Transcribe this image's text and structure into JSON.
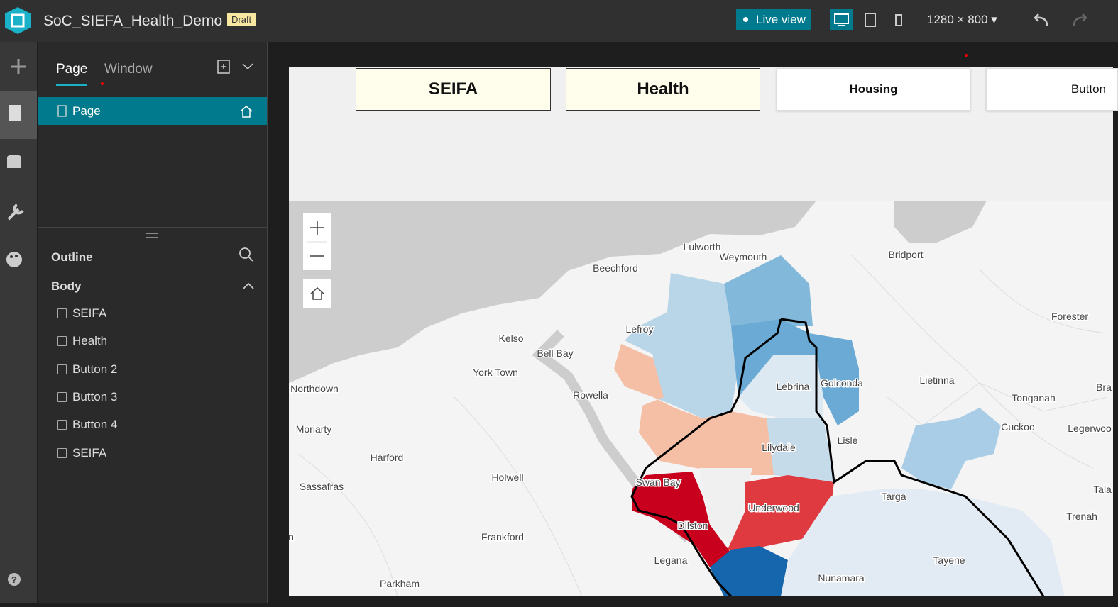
{
  "header": {
    "app_title": "SoC_SIEFA_Health_Demo",
    "badge": "Draft",
    "live_view": "Live view",
    "resolution": "1280 × 800"
  },
  "panel": {
    "tabs": [
      "Page",
      "Window"
    ],
    "page_item": "Page",
    "outline_title": "Outline",
    "body_label": "Body",
    "outline_items": [
      "SEIFA",
      "Health",
      "Button 2",
      "Button 3",
      "Button 4",
      "SEIFA"
    ]
  },
  "canvas": {
    "buttons": [
      "SEIFA",
      "Health",
      "Housing",
      "Button"
    ]
  },
  "map": {
    "labels": [
      "Lulworth",
      "Weymouth",
      "Beechford",
      "Bridport",
      "Forester",
      "Lefroy",
      "Kelso",
      "Bell Bay",
      "York Town",
      "Northdown",
      "Rowella",
      "Lebrina",
      "Golconda",
      "Lietinna",
      "Tonganah",
      "Bra",
      "Cuckoo",
      "Legerwoo",
      "Moriarty",
      "Lilydale",
      "Lisle",
      "Harford",
      "Holwell",
      "Sassafras",
      "Swan Bay",
      "Targa",
      "Tala",
      "Underwood",
      "Trenah",
      "Dilston",
      "Frankford",
      "Legana",
      "Tayene",
      "Nunamara",
      "Parkham",
      "n"
    ]
  }
}
